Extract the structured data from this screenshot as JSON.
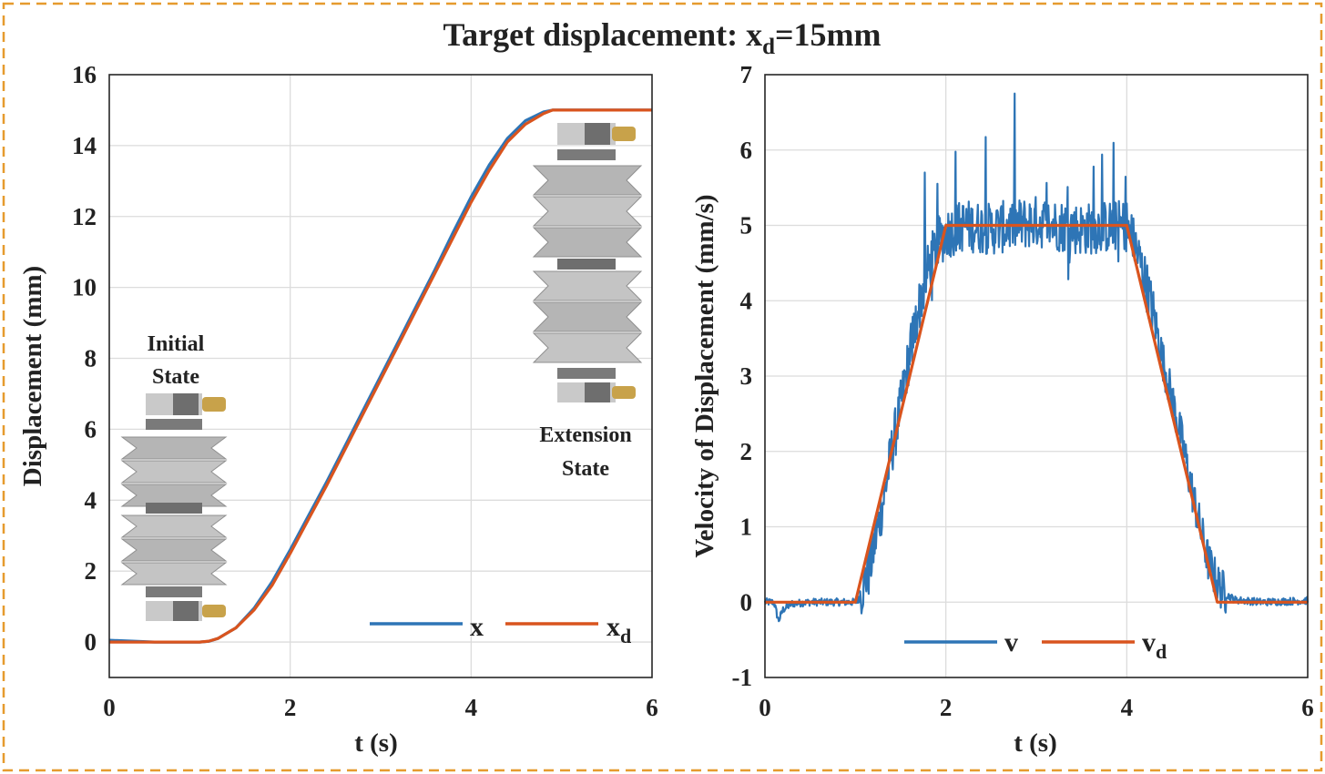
{
  "figure": {
    "title": "Target displacement: x",
    "title_sub": "d",
    "title_tail": "=15mm",
    "border_color": "#E69B2E"
  },
  "chart_data": [
    {
      "type": "line",
      "xlabel": "t (s)",
      "ylabel": "Displacement (mm)",
      "xlim": [
        0,
        6
      ],
      "ylim": [
        -1,
        16
      ],
      "xticks": [
        "0",
        "2",
        "4",
        "6"
      ],
      "yticks": [
        "0",
        "2",
        "4",
        "6",
        "8",
        "10",
        "12",
        "14",
        "16"
      ],
      "grid": true,
      "legend_position": "bottom-right",
      "annotations": [
        {
          "lines": [
            "Initial",
            "State"
          ]
        },
        {
          "lines": [
            "Extension",
            "State"
          ]
        }
      ],
      "series": [
        {
          "name": "x",
          "color": "#2E75B6",
          "x": [
            0,
            0.5,
            1.0,
            1.1,
            1.2,
            1.4,
            1.6,
            1.8,
            2.0,
            2.2,
            2.4,
            2.6,
            2.8,
            3.0,
            3.2,
            3.4,
            3.6,
            3.8,
            4.0,
            4.2,
            4.4,
            4.6,
            4.8,
            4.9,
            5.0,
            5.5,
            6.0
          ],
          "y": [
            0.05,
            0.0,
            0.0,
            0.02,
            0.1,
            0.4,
            0.95,
            1.7,
            2.6,
            3.55,
            4.5,
            5.5,
            6.5,
            7.5,
            8.5,
            9.5,
            10.5,
            11.55,
            12.55,
            13.45,
            14.2,
            14.7,
            14.95,
            15.0,
            15.0,
            15.0,
            15.0
          ]
        },
        {
          "name": "x",
          "name_sub": "d",
          "color": "#D9541E",
          "x": [
            0,
            1.0,
            1.1,
            1.2,
            1.4,
            1.6,
            1.8,
            2.0,
            2.2,
            2.4,
            2.6,
            2.8,
            3.0,
            3.2,
            3.4,
            3.6,
            3.8,
            4.0,
            4.2,
            4.4,
            4.6,
            4.8,
            4.9,
            5.0,
            6.0
          ],
          "y": [
            0.0,
            0.0,
            0.025,
            0.1,
            0.4,
            0.9,
            1.6,
            2.5,
            3.45,
            4.4,
            5.4,
            6.4,
            7.4,
            8.4,
            9.4,
            10.4,
            11.4,
            12.4,
            13.3,
            14.1,
            14.6,
            14.9,
            15.0,
            15.0,
            15.0
          ]
        }
      ]
    },
    {
      "type": "line",
      "xlabel": "t (s)",
      "ylabel": "Velocity of Displacement (mm/s)",
      "xlim": [
        0,
        6
      ],
      "ylim": [
        -1,
        7
      ],
      "xticks": [
        "0",
        "2",
        "4",
        "6"
      ],
      "yticks": [
        "-1",
        "0",
        "1",
        "2",
        "3",
        "4",
        "5",
        "6",
        "7"
      ],
      "grid": true,
      "legend_position": "bottom-center",
      "series": [
        {
          "name": "v",
          "color": "#2E75B6",
          "noisy": true,
          "x": [
            0,
            0.1,
            0.15,
            0.2,
            0.3,
            0.5,
            1.0,
            1.05,
            1.1,
            1.15,
            1.2,
            1.3,
            1.4,
            1.5,
            1.6,
            1.7,
            1.8,
            1.9,
            2.0,
            2.2,
            2.5,
            3.0,
            3.5,
            4.0,
            4.1,
            4.2,
            4.3,
            4.4,
            4.5,
            4.6,
            4.7,
            4.8,
            4.9,
            5.0,
            5.1,
            5.2,
            5.5,
            6.0
          ],
          "y": [
            0.0,
            0.0,
            -0.25,
            -0.1,
            -0.02,
            0.0,
            0.0,
            0.05,
            0.3,
            0.4,
            0.7,
            1.3,
            2.0,
            2.6,
            3.3,
            3.9,
            4.4,
            4.75,
            4.9,
            5.0,
            4.95,
            5.05,
            4.95,
            5.0,
            4.7,
            4.3,
            3.8,
            3.2,
            2.7,
            2.2,
            1.6,
            1.05,
            0.55,
            0.25,
            0.1,
            0.03,
            0.0,
            0.02
          ]
        },
        {
          "name": "v",
          "name_sub": "d",
          "color": "#D9541E",
          "x": [
            0,
            1,
            2,
            4,
            5,
            6
          ],
          "y": [
            0,
            0,
            5,
            5,
            0,
            0
          ]
        }
      ]
    }
  ]
}
